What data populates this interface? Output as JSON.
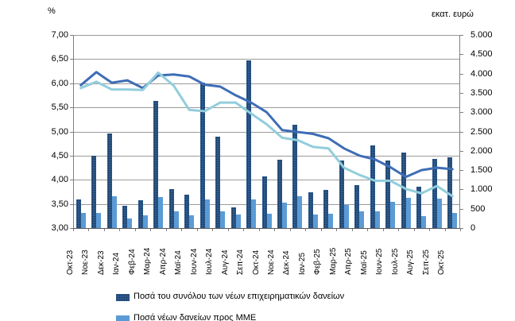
{
  "chart": {
    "left_axis_title": "%",
    "right_axis_title": "εκατ. ευρώ",
    "left_ticks": [
      "7,00",
      "6,50",
      "6,00",
      "5,50",
      "5,00",
      "4,50",
      "4,00",
      "3,50",
      "3,00"
    ],
    "right_ticks": [
      "5.000",
      "4.500",
      "4.000",
      "3.500",
      "3.000",
      "2.500",
      "2.000",
      "1.500",
      "1.000",
      "500",
      "0"
    ]
  },
  "legend": [
    {
      "label": "Ποσά του συνόλου των νέων επιχειρηματικών δανείων",
      "swatch_color": "#2e5b8f",
      "swatch_style": "bar-dark-dotted"
    },
    {
      "label": "Ποσά νέων δανείων προς ΜΜΕ",
      "swatch_color": "#5b9bd5",
      "swatch_style": "bar-light"
    }
  ],
  "chart_data": {
    "type": "bar",
    "subtype": "combo-bar-line-dual-axis",
    "categories": [
      "Οκτ-23",
      "Νοε-23",
      "Δεκ-23",
      "Ιαν-24",
      "Φεβ-24",
      "Μαρ-24",
      "Απρ-24",
      "Μαϊ-24",
      "Ιουν-24",
      "Ιουλ-24",
      "Αυγ-24",
      "Σεπ-24",
      "Οκτ-24",
      "Νοε-24",
      "Δεκ-24",
      "Ιαν-25",
      "Φεβ-25",
      "Μαρ-25",
      "Απρ-25",
      "Μαϊ-25",
      "Ιουν-25",
      "Ιουλ-25",
      "Αυγ-25",
      "Σεπ-25",
      "Οκτ-25"
    ],
    "left_axis": {
      "title": "%",
      "min": 3.0,
      "max": 7.0,
      "step": 0.5,
      "tick_format": "comma-decimal"
    },
    "right_axis": {
      "title": "εκατ. ευρώ",
      "min": 0,
      "max": 5000,
      "step": 500,
      "tick_format": "dot-thousands"
    },
    "grid": "horizontal",
    "legend_position": "bottom-left (partially cut off at image edge)",
    "series": [
      {
        "name": "Ποσά του συνόλου των νέων επιχειρηματικών δανείων",
        "type": "bar",
        "axis": "right",
        "color": "#2e5b8f",
        "pattern": "dotted",
        "values": [
          740,
          1880,
          2450,
          570,
          730,
          3300,
          1010,
          860,
          3775,
          2370,
          540,
          4340,
          1340,
          1770,
          2670,
          930,
          990,
          1740,
          1120,
          2130,
          1740,
          1960,
          1070,
          1780,
          1840
        ]
      },
      {
        "name": "Ποσά νέων δανείων προς ΜΜΕ",
        "type": "bar",
        "axis": "right",
        "color": "#5b9bd5",
        "pattern": "solid",
        "values": [
          400,
          395,
          820,
          250,
          330,
          810,
          440,
          320,
          735,
          440,
          340,
          735,
          380,
          650,
          820,
          350,
          375,
          605,
          440,
          440,
          680,
          790,
          305,
          755,
          400
        ]
      },
      {
        "name": "dark-blue-line",
        "type": "line",
        "axis": "left",
        "color": "#3e6db5",
        "values": [
          5.96,
          6.23,
          6.01,
          6.06,
          5.9,
          6.16,
          6.18,
          6.14,
          5.97,
          5.93,
          5.75,
          5.6,
          5.4,
          5.03,
          4.99,
          4.95,
          4.86,
          4.65,
          4.5,
          4.42,
          4.26,
          4.06,
          4.2,
          4.25,
          4.22
        ]
      },
      {
        "name": "light-blue-line",
        "type": "line",
        "axis": "left",
        "color": "#92cddc",
        "values": [
          5.9,
          6.03,
          5.87,
          5.87,
          5.86,
          6.22,
          5.95,
          5.45,
          5.42,
          5.6,
          5.6,
          5.37,
          5.15,
          4.87,
          4.82,
          4.68,
          4.65,
          4.25,
          4.1,
          3.98,
          3.98,
          3.81,
          3.72,
          3.87,
          3.66
        ]
      }
    ]
  }
}
